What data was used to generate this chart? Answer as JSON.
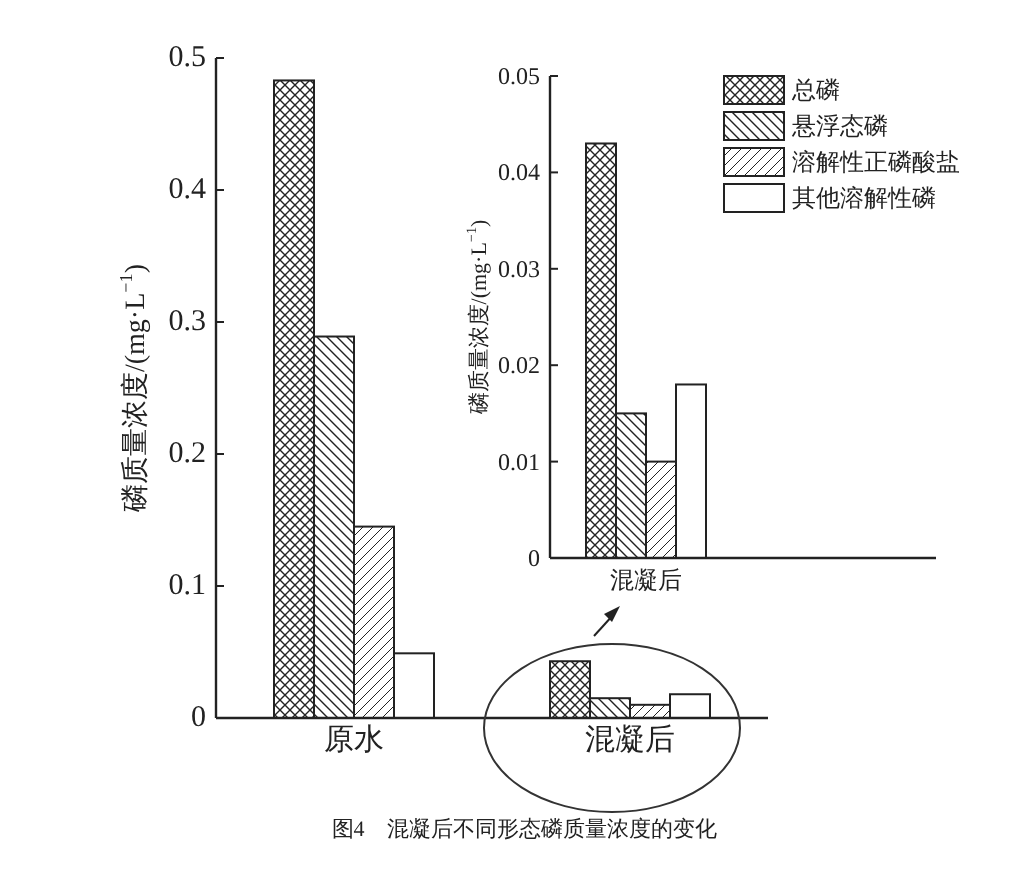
{
  "chart_data": [
    {
      "type": "bar",
      "title": "图4　混凝后不同形态磷质量浓度的变化",
      "ylabel": "磷质量浓度/(mg·L$^{−1}$)",
      "categories": [
        "原水",
        "混凝后"
      ],
      "ylim": [
        0,
        0.5
      ],
      "yticks": [
        0,
        0.1,
        0.2,
        0.3,
        0.4,
        0.5
      ],
      "grid": false,
      "legend": false,
      "series": [
        {
          "color": "#222222",
          "values": [
            0.483,
            0.043
          ]
        },
        {
          "color": "#222222",
          "values": [
            0.289,
            0.015
          ]
        },
        {
          "color": "#222222",
          "values": [
            0.145,
            0.01
          ]
        },
        {
          "color": "#ffffff",
          "values": [
            0.049,
            0.018
          ]
        }
      ]
    },
    {
      "type": "bar",
      "ylabel": "磷质量浓度/(mg·L$^{−1}$)",
      "categories": [
        "混凝后"
      ],
      "ylim": [
        0,
        0.05
      ],
      "yticks": [
        0,
        0.01,
        0.02,
        0.03,
        0.04,
        0.05
      ],
      "grid": false,
      "legend": "top right",
      "series": [
        {
          "name": "总磷",
          "color": "#222222",
          "values": [
            0.043
          ]
        },
        {
          "name": "悬浮态磷",
          "color": "#222222",
          "values": [
            0.015
          ]
        },
        {
          "name": "溶解性正磷酸盐",
          "color": "#222222",
          "values": [
            0.01
          ]
        },
        {
          "name": "其他溶解性磷",
          "color": "#ffffff",
          "values": [
            0.018
          ]
        }
      ]
    }
  ]
}
